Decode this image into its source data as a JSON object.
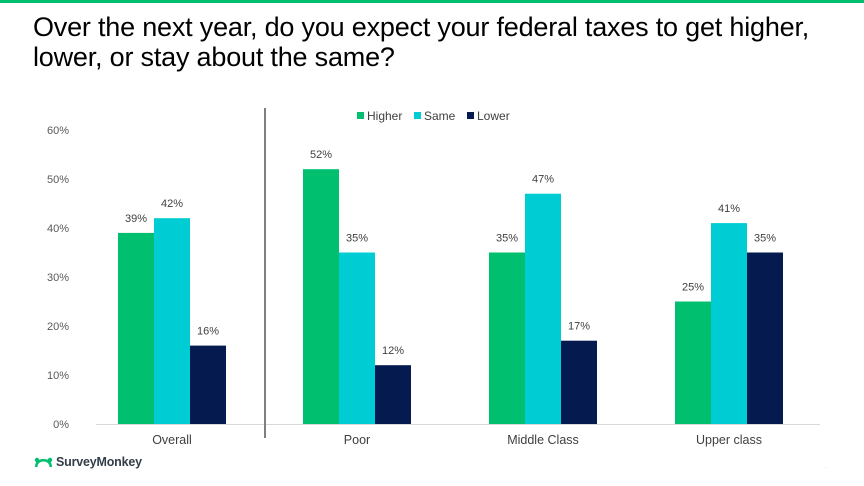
{
  "title": "Over the next year, do you expect your federal taxes to get higher, lower, or stay about the same?",
  "brand": "SurveyMonkey",
  "colors": {
    "Higher": "#00BF6F",
    "Same": "#00CDD3",
    "Lower": "#051A4F",
    "accent": "#00BF6F"
  },
  "chart_data": {
    "type": "bar",
    "categories": [
      "Overall",
      "Poor",
      "Middle Class",
      "Upper class"
    ],
    "series": [
      {
        "name": "Higher",
        "values": [
          39,
          52,
          35,
          25
        ],
        "labels": [
          "39%",
          "52%",
          "35%",
          "25%"
        ]
      },
      {
        "name": "Same",
        "values": [
          42,
          35,
          47,
          41
        ],
        "labels": [
          "42%",
          "35%",
          "47%",
          "41%"
        ]
      },
      {
        "name": "Lower",
        "values": [
          16,
          12,
          17,
          35
        ],
        "labels": [
          "16%",
          "12%",
          "17%",
          "35%"
        ]
      }
    ],
    "ylim": [
      0,
      60
    ],
    "yticks": [
      "0%",
      "10%",
      "20%",
      "30%",
      "40%",
      "50%",
      "60%"
    ],
    "legend": "top-center",
    "grid": false
  }
}
